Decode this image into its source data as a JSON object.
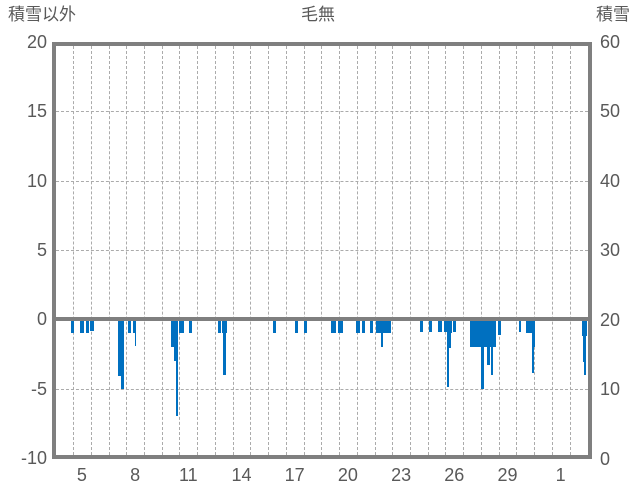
{
  "header": {
    "left_axis_title": "積雪以外",
    "title": "毛無",
    "right_axis_title": "積雪"
  },
  "chart_data": {
    "type": "bar",
    "title": "毛無",
    "left_axis": {
      "title": "積雪以外",
      "min": -10,
      "max": 20,
      "ticks": [
        "20",
        "15",
        "10",
        "5",
        "0",
        "-5",
        "-10"
      ],
      "tick_values": [
        20,
        15,
        10,
        5,
        0,
        -5,
        -10
      ],
      "gridline_values": [
        15,
        10,
        5,
        -5
      ]
    },
    "right_axis": {
      "title": "積雪",
      "min": 0,
      "max": 60,
      "ticks": [
        "60",
        "50",
        "40",
        "30",
        "20",
        "10",
        "0"
      ],
      "tick_values": [
        60,
        50,
        40,
        30,
        20,
        10,
        0
      ]
    },
    "x_axis": {
      "day_start": 4,
      "day_end": 34,
      "grid": "daily",
      "tick_days": [
        5,
        8,
        11,
        14,
        17,
        20,
        23,
        26,
        29,
        32
      ],
      "tick_labels": [
        "5",
        "8",
        "11",
        "14",
        "17",
        "20",
        "23",
        "26",
        "29",
        "1"
      ]
    },
    "legend": "none",
    "colors": {
      "bar": "#0070c0",
      "axis_frame": "#7f7f7f",
      "zero_line": "#7f7f7f",
      "grid": "#ababab",
      "text": "#595959"
    },
    "bars_format": [
      "day_start_fraction",
      "duration_days",
      "value_left_axis"
    ],
    "bars": [
      [
        4.88,
        0.19,
        -1.0
      ],
      [
        5.41,
        0.19,
        -1.0
      ],
      [
        5.73,
        0.19,
        -1.0
      ],
      [
        5.97,
        0.19,
        -0.85
      ],
      [
        7.55,
        0.31,
        -4.1
      ],
      [
        7.72,
        0.14,
        -5.0
      ],
      [
        8.07,
        0.19,
        -1.0
      ],
      [
        8.39,
        0.1,
        -1.0
      ],
      [
        8.48,
        0.1,
        -1.9
      ],
      [
        10.51,
        0.19,
        -2.0
      ],
      [
        10.69,
        0.1,
        -3.0
      ],
      [
        10.79,
        0.13,
        -7.0
      ],
      [
        10.96,
        0.3,
        -1.0
      ],
      [
        11.54,
        0.17,
        -1.0
      ],
      [
        13.17,
        0.19,
        -1.0
      ],
      [
        13.39,
        0.29,
        -1.0
      ],
      [
        13.43,
        0.17,
        -4.0
      ],
      [
        16.26,
        0.17,
        -1.0
      ],
      [
        17.54,
        0.15,
        -1.0
      ],
      [
        18.04,
        0.13,
        -1.0
      ],
      [
        19.55,
        0.28,
        -1.0
      ],
      [
        19.92,
        0.28,
        -1.0
      ],
      [
        20.95,
        0.22,
        -1.0
      ],
      [
        21.32,
        0.15,
        -1.0
      ],
      [
        21.76,
        0.17,
        -1.0
      ],
      [
        22.08,
        0.84,
        -1.0
      ],
      [
        22.36,
        0.13,
        -2.0
      ],
      [
        24.54,
        0.2,
        -0.9
      ],
      [
        25.07,
        0.2,
        -0.9
      ],
      [
        25.6,
        0.19,
        -0.9
      ],
      [
        25.92,
        0.15,
        -0.9
      ],
      [
        26.1,
        0.28,
        -1.0
      ],
      [
        26.1,
        0.19,
        -2.1
      ],
      [
        26.11,
        0.12,
        -4.9
      ],
      [
        26.44,
        0.17,
        -0.9
      ],
      [
        27.4,
        1.45,
        -2.0
      ],
      [
        28.0,
        0.15,
        -5.0
      ],
      [
        28.34,
        0.15,
        -3.3
      ],
      [
        28.56,
        0.15,
        -4.0
      ],
      [
        28.97,
        0.15,
        -1.1
      ],
      [
        30.12,
        0.15,
        -0.9
      ],
      [
        30.55,
        0.17,
        -1.0
      ],
      [
        30.71,
        0.15,
        -1.0
      ],
      [
        30.87,
        0.19,
        -2.0
      ],
      [
        30.89,
        0.12,
        -3.9
      ],
      [
        33.71,
        0.29,
        -1.2
      ],
      [
        33.75,
        0.19,
        -3.1
      ],
      [
        33.79,
        0.13,
        -4.0
      ]
    ]
  }
}
